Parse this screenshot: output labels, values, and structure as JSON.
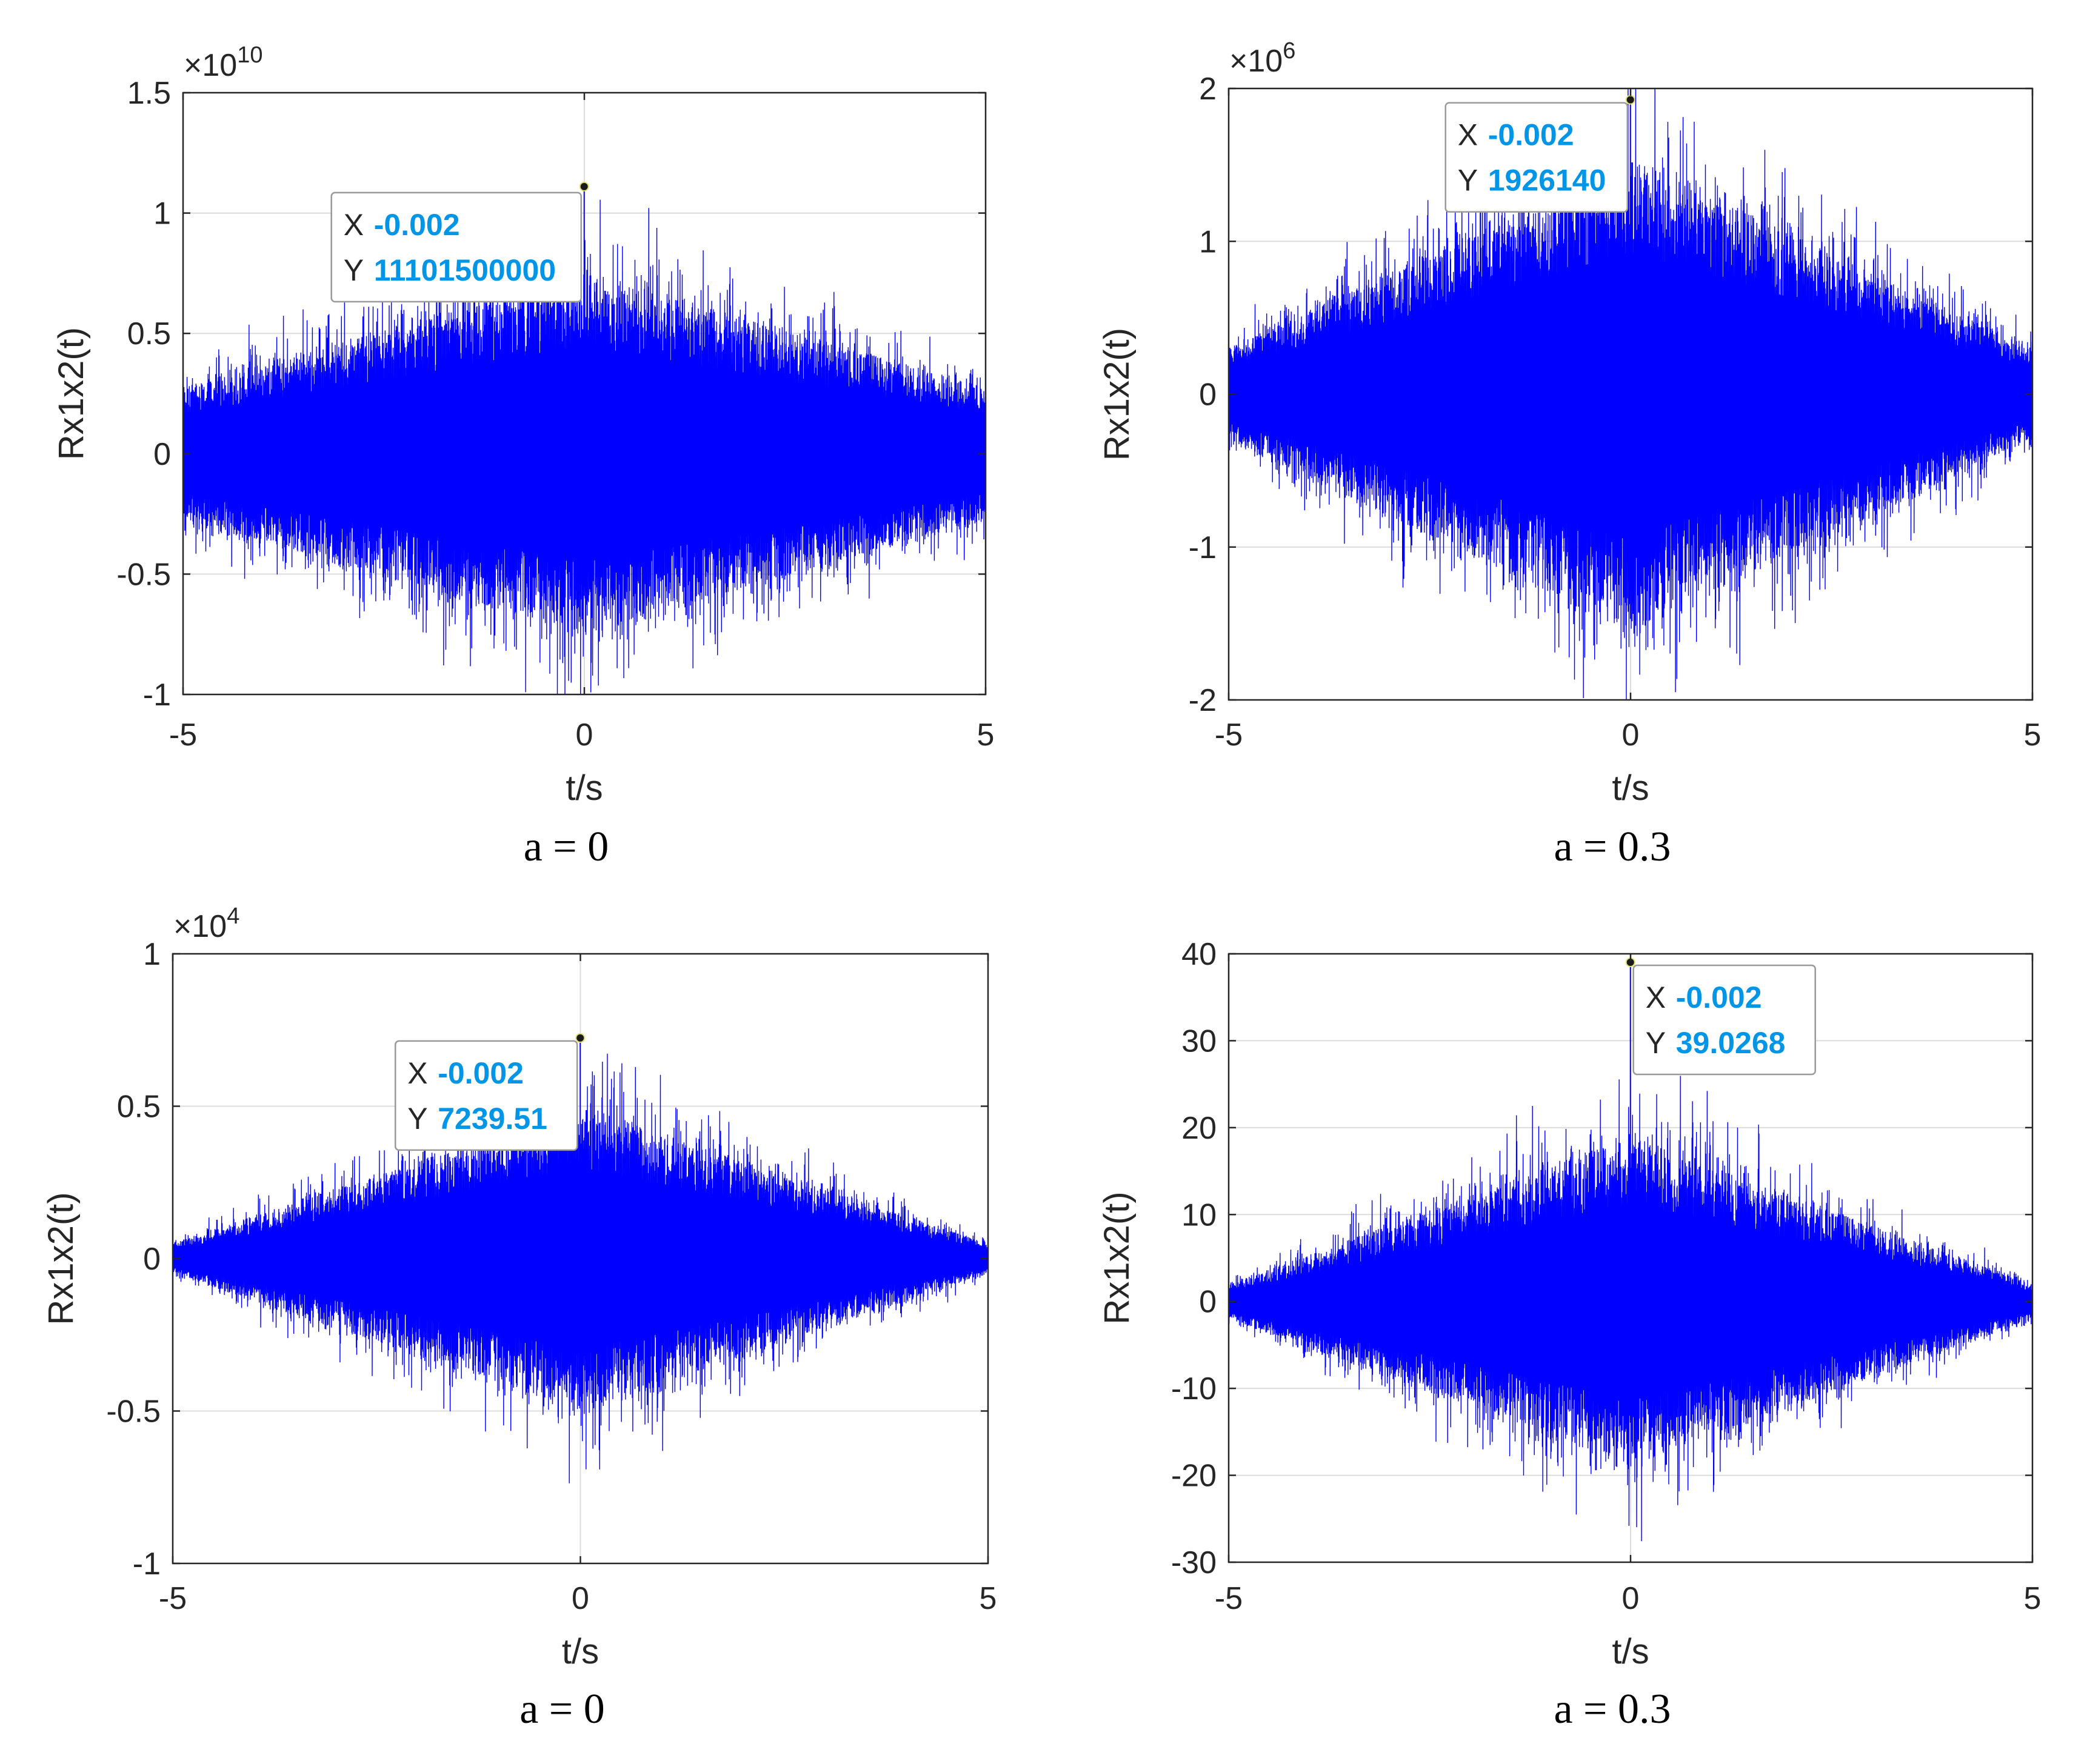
{
  "colors": {
    "signal": "#0000ff",
    "grid": "#dcdcdc",
    "axis": "#262626",
    "datatip_value": "#0095e6",
    "datatip_border": "#9a9a9a",
    "datatip_bg": "#ffffff"
  },
  "chart_data": [
    {
      "type": "line",
      "panel": "top-left",
      "xlabel": "t/s",
      "ylabel": "Rx1x2(t)",
      "caption": "a = 0",
      "xlim": [
        -5,
        5
      ],
      "ylim": [
        -1,
        1.5
      ],
      "exponent_label": "×10",
      "exponent_power": "10",
      "xticks": [
        -5,
        0,
        5
      ],
      "xtick_labels": [
        "-5",
        "0",
        "5"
      ],
      "yticks": [
        -1,
        -0.5,
        0,
        0.5,
        1,
        1.5
      ],
      "ytick_labels": [
        "-1",
        "-0.5",
        "0",
        "0.5",
        "1",
        "1.5"
      ],
      "grid": true,
      "envelope": {
        "center": 0.75,
        "edge": 0.28
      },
      "series": [
        {
          "values_description": "",
          "peak": {
            "x": -0.002,
            "y": 1.11015
          }
        }
      ],
      "datatip": {
        "x_label": "X",
        "x_value": "-0.002",
        "y_label": "Y",
        "y_value": "11101500000",
        "placement": "left"
      }
    },
    {
      "type": "line",
      "panel": "top-right",
      "xlabel": "t/s",
      "ylabel": "Rx1x2(t)",
      "caption": "a = 0.3",
      "xlim": [
        -5,
        5
      ],
      "ylim": [
        -2,
        2
      ],
      "exponent_label": "×10",
      "exponent_power": "6",
      "xticks": [
        -5,
        0,
        5
      ],
      "xtick_labels": [
        "-5",
        "0",
        "5"
      ],
      "yticks": [
        -2,
        -1,
        0,
        1,
        2
      ],
      "ytick_labels": [
        "-2",
        "-1",
        "0",
        "1",
        "2"
      ],
      "grid": true,
      "envelope": {
        "center": 1.55,
        "edge": 0.3
      },
      "series": [
        {
          "values_description": "",
          "peak": {
            "x": -0.002,
            "y": 1.92614
          }
        }
      ],
      "datatip": {
        "x_label": "X",
        "x_value": "-0.002",
        "y_label": "Y",
        "y_value": "1926140",
        "placement": "left"
      }
    },
    {
      "type": "line",
      "panel": "bottom-left",
      "xlabel": "t/s",
      "ylabel": "Rx1x2(t)",
      "caption": "a = 0",
      "xlim": [
        -5,
        5
      ],
      "ylim": [
        -1,
        1
      ],
      "exponent_label": "×10",
      "exponent_power": "4",
      "xticks": [
        -5,
        0,
        5
      ],
      "xtick_labels": [
        "-5",
        "0",
        "5"
      ],
      "yticks": [
        -1,
        -0.5,
        0,
        0.5,
        1
      ],
      "ytick_labels": [
        "-1",
        "-0.5",
        "0",
        "0.5",
        "1"
      ],
      "grid": true,
      "envelope": {
        "center": 0.5,
        "edge": 0.05
      },
      "series": [
        {
          "values_description": "",
          "peak": {
            "x": -0.002,
            "y": 0.723951
          }
        }
      ],
      "datatip": {
        "x_label": "X",
        "x_value": "-0.002",
        "y_label": "Y",
        "y_value": "7239.51",
        "placement": "left"
      }
    },
    {
      "type": "line",
      "panel": "bottom-right",
      "xlabel": "t/s",
      "ylabel": "Rx1x2(t)",
      "caption": "a = 0.3",
      "xlim": [
        -5,
        5
      ],
      "ylim": [
        -30,
        40
      ],
      "exponent_label": "",
      "exponent_power": "",
      "xticks": [
        -5,
        0,
        5
      ],
      "xtick_labels": [
        "-5",
        "0",
        "5"
      ],
      "yticks": [
        -30,
        -20,
        -10,
        0,
        10,
        20,
        30,
        40
      ],
      "ytick_labels": [
        "-30",
        "-20",
        "-10",
        "0",
        "10",
        "20",
        "30",
        "40"
      ],
      "grid": true,
      "envelope": {
        "center": 19,
        "edge": 2
      },
      "series": [
        {
          "values_description": "",
          "peak": {
            "x": -0.002,
            "y": 39.0268
          }
        }
      ],
      "datatip": {
        "x_label": "X",
        "x_value": "-0.002",
        "y_label": "Y",
        "y_value": "39.0268",
        "placement": "right"
      }
    }
  ]
}
